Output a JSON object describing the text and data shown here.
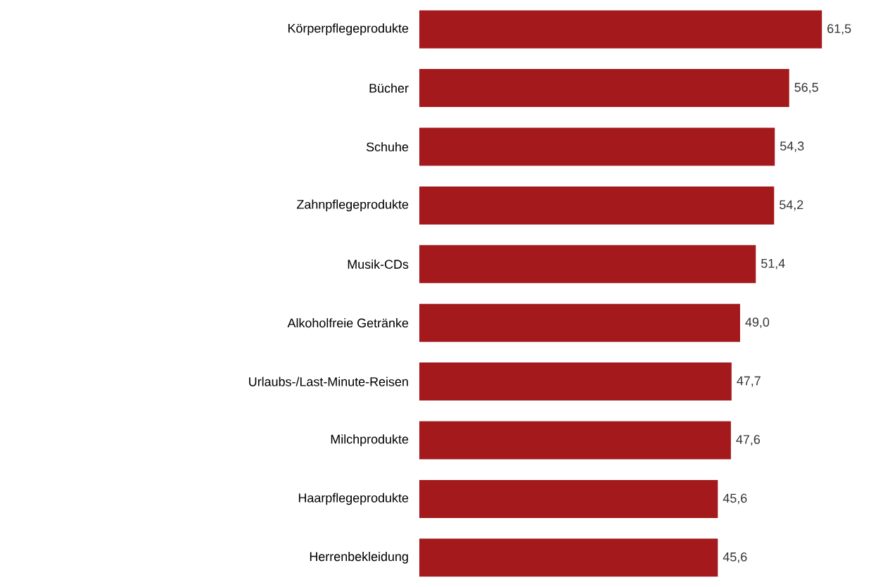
{
  "chart_data": {
    "type": "bar",
    "orientation": "horizontal",
    "color": "#a3191c",
    "categories": [
      "Körperpflegeprodukte",
      "Bücher",
      "Schuhe",
      "Zahnpflegeprodukte",
      "Musik-CDs",
      "Alkoholfreie Getränke",
      "Urlaubs-/Last-Minute-Reisen",
      "Milchprodukte",
      "Haarpflegeprodukte",
      "Herrenbekleidung"
    ],
    "values": [
      61.5,
      56.5,
      54.3,
      54.2,
      51.4,
      49.0,
      47.7,
      47.6,
      45.6,
      45.6
    ],
    "value_labels": [
      "61,5",
      "56,5",
      "54,3",
      "54,2",
      "51,4",
      "49,0",
      "47,7",
      "47,6",
      "45,6",
      "45,6"
    ]
  }
}
